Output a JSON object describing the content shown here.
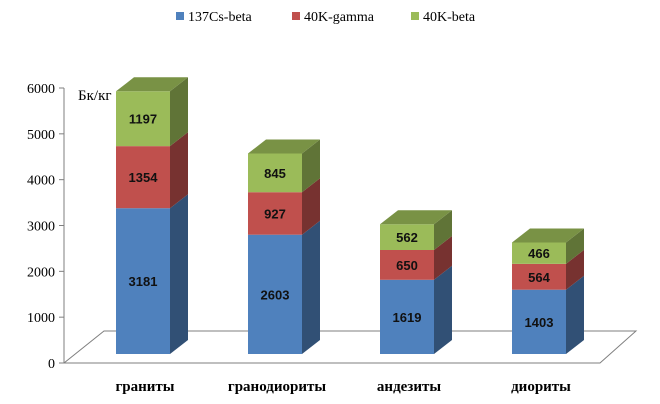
{
  "chart_data": {
    "type": "bar",
    "stacked": true,
    "three_d": true,
    "title": "",
    "xlabel": "",
    "ylabel": "",
    "unit_label": "Бк/кг",
    "ylim": [
      0,
      6000
    ],
    "yticks": [
      0,
      1000,
      2000,
      3000,
      4000,
      5000,
      6000
    ],
    "grid": false,
    "legend_position": "top",
    "categories": [
      "граниты",
      "гранодиориты",
      "андезиты",
      "диориты"
    ],
    "series": [
      {
        "name": "137Cs-beta",
        "values": [
          3181,
          2603,
          1619,
          1403
        ],
        "color": "#4f81bd"
      },
      {
        "name": "40K-gamma",
        "values": [
          1354,
          927,
          650,
          564
        ],
        "color": "#c0504d"
      },
      {
        "name": "40K-beta",
        "values": [
          1197,
          845,
          562,
          466
        ],
        "color": "#9bbb59"
      }
    ]
  }
}
